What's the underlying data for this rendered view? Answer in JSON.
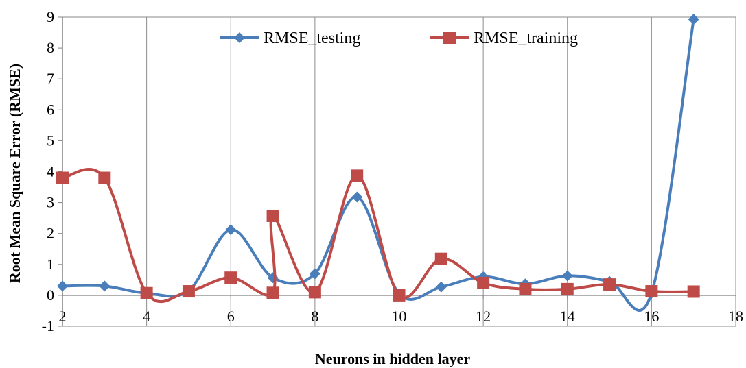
{
  "chart_data": {
    "type": "line",
    "title": "",
    "xlabel": "Neurons in hidden layer",
    "ylabel": "Root Mean Square Error (RMSE)",
    "xlim": [
      2,
      18
    ],
    "ylim": [
      -1,
      9
    ],
    "xticks": [
      2,
      4,
      6,
      8,
      10,
      12,
      14,
      16,
      18
    ],
    "yticks": [
      -1,
      0,
      1,
      2,
      3,
      4,
      5,
      6,
      7,
      8,
      9
    ],
    "grid": "vertical",
    "legend_position": "top-center",
    "smooth": true,
    "series": [
      {
        "name": "RMSE_testing",
        "color": "#4a7ebb",
        "marker": "diamond",
        "points": [
          [
            2,
            0.3
          ],
          [
            3,
            0.3
          ],
          [
            4,
            0.07
          ],
          [
            5,
            0.15
          ],
          [
            6,
            2.12
          ],
          [
            7,
            0.57
          ],
          [
            8,
            0.7
          ],
          [
            9,
            3.18
          ],
          [
            10,
            0.05
          ],
          [
            11,
            0.27
          ],
          [
            12,
            0.6
          ],
          [
            13,
            0.37
          ],
          [
            14,
            0.63
          ],
          [
            15,
            0.45
          ],
          [
            16,
            0.07
          ],
          [
            17,
            8.93
          ]
        ]
      },
      {
        "name": "RMSE_training",
        "color": "#be4b48",
        "marker": "square",
        "points": [
          [
            2,
            3.8
          ],
          [
            3,
            3.8
          ],
          [
            4,
            0.07
          ],
          [
            5,
            0.13
          ],
          [
            6,
            0.57
          ],
          [
            7,
            0.08
          ],
          [
            7,
            2.57
          ],
          [
            8,
            0.1
          ],
          [
            9,
            3.87
          ],
          [
            10,
            0.0
          ],
          [
            11,
            1.18
          ],
          [
            12,
            0.4
          ],
          [
            13,
            0.2
          ],
          [
            14,
            0.2
          ],
          [
            15,
            0.35
          ],
          [
            16,
            0.13
          ],
          [
            17,
            0.12
          ]
        ]
      }
    ]
  }
}
